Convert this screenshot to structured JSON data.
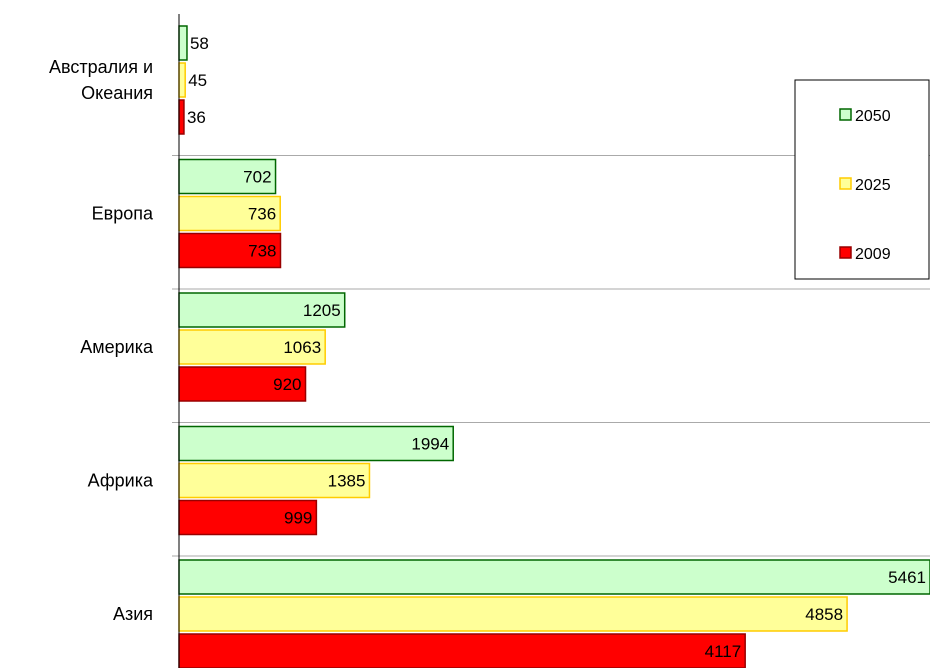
{
  "chart_data": {
    "type": "bar",
    "orientation": "horizontal",
    "categories": [
      "Австралия и Океания",
      "Европа",
      "Америка",
      "Африка",
      "Азия"
    ],
    "category_lines": [
      [
        "Австралия и",
        "Океания"
      ],
      [
        "Европа"
      ],
      [
        "Америка"
      ],
      [
        "Африка"
      ],
      [
        "Азия"
      ]
    ],
    "series": [
      {
        "name": "2050",
        "values": [
          58,
          702,
          1205,
          1994,
          5461
        ],
        "fill": "#ccffcc",
        "stroke": "#006600"
      },
      {
        "name": "2025",
        "values": [
          45,
          736,
          1063,
          1385,
          4858
        ],
        "fill": "#ffff99",
        "stroke": "#ffcc00"
      },
      {
        "name": "2009",
        "values": [
          36,
          738,
          920,
          999,
          4117
        ],
        "fill": "#ff0000",
        "stroke": "#990000"
      }
    ],
    "title": "",
    "xlabel": "",
    "ylabel": "",
    "xlim": [
      0,
      5461
    ],
    "grid": false,
    "legend_position": "right"
  }
}
